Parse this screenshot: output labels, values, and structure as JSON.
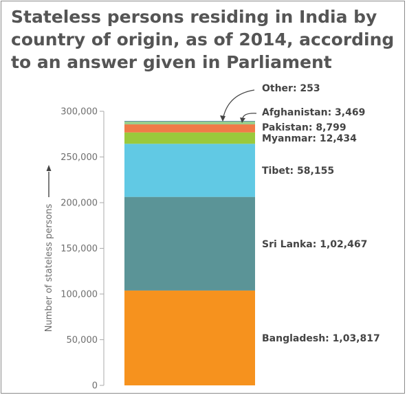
{
  "title": "Stateless persons residing in India by country of origin, as of 2014, according to an answer given in Parliament",
  "chart_data": {
    "type": "bar",
    "stacked": true,
    "title": "Stateless persons residing in India by country of origin, as of 2014, according to an answer given in Parliament",
    "ylabel": "Number of stateless persons",
    "ylim": [
      0,
      300000
    ],
    "yticks": [
      0,
      50000,
      100000,
      150000,
      200000,
      250000,
      300000
    ],
    "ytick_labels": [
      "0",
      "50,000",
      "100,000",
      "150,000",
      "200,000",
      "250,000",
      "300,000"
    ],
    "grid": false,
    "series": [
      {
        "name": "Bangladesh",
        "value": 103817,
        "label": "Bangladesh: 1,03,817",
        "color": "#f6921e"
      },
      {
        "name": "Sri Lanka",
        "value": 102467,
        "label": "Sri Lanka: 1,02,467",
        "color": "#5b9497"
      },
      {
        "name": "Tibet",
        "value": 58155,
        "label": "Tibet: 58,155",
        "color": "#61c9e4"
      },
      {
        "name": "Myanmar",
        "value": 12434,
        "label": "Myanmar: 12,434",
        "color": "#9ac93c"
      },
      {
        "name": "Pakistan",
        "value": 8799,
        "label": "Pakistan: 8,799",
        "color": "#f07a47"
      },
      {
        "name": "Afghanistan",
        "value": 3469,
        "label": "Afghanistan: 3,469",
        "color": "#99cf8c"
      },
      {
        "name": "Other",
        "value": 253,
        "label": "Other: 253",
        "color": "#4e7ca0"
      }
    ]
  }
}
